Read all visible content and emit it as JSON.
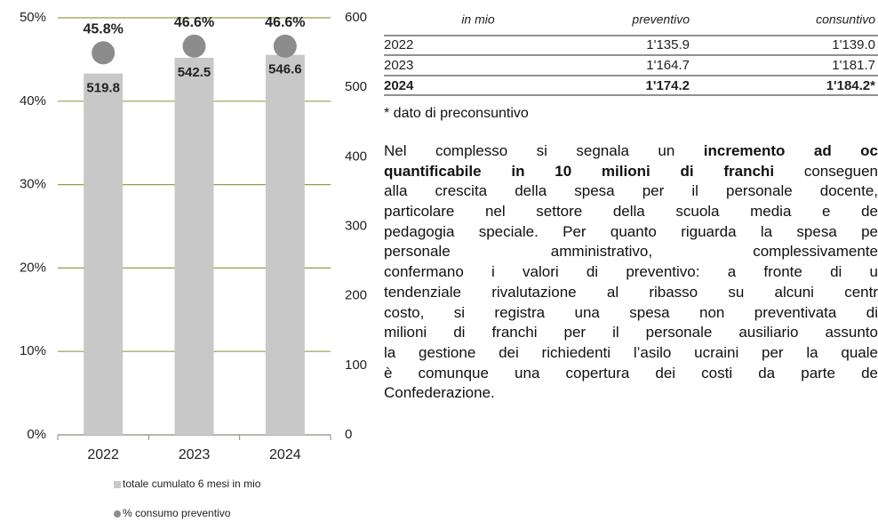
{
  "chart_data": {
    "type": "bar",
    "categories": [
      "2022",
      "2023",
      "2024"
    ],
    "series": [
      {
        "name": "totale cumulato 6 mesi in mio",
        "color": "#c8c8c8",
        "axis": "y2",
        "values": [
          519.8,
          542.5,
          546.6
        ]
      },
      {
        "name": "% consumo preventivo",
        "type": "scatter",
        "color": "#8c8c8c",
        "values": [
          45.8,
          46.6,
          46.6
        ],
        "value_labels": [
          "45.8%",
          "46.6%",
          "46.6%"
        ]
      }
    ],
    "ylim": [
      0,
      50
    ],
    "yticks": [
      {
        "value": 0,
        "label": "0%"
      },
      {
        "value": 10,
        "label": "10%"
      },
      {
        "value": 20,
        "label": "20%"
      },
      {
        "value": 30,
        "label": "30%"
      },
      {
        "value": 40,
        "label": "40%"
      },
      {
        "value": 50,
        "label": "50%"
      }
    ],
    "y2lim": [
      0,
      600
    ],
    "y2ticks": [
      0,
      100,
      200,
      300,
      400,
      500,
      600
    ],
    "grid": true,
    "grid_color": "#9b9b4f"
  },
  "table": {
    "header": [
      "in mio",
      "preventivo",
      "consuntivo"
    ],
    "rows": [
      [
        "2022",
        "1'135.9",
        "1'139.0"
      ],
      [
        "2023",
        "1'164.7",
        "1'181.7"
      ],
      [
        "2024",
        "1'174.2",
        "1'184.2*"
      ]
    ],
    "bold_row": 2
  },
  "note": "* dato di preconsuntivo",
  "paragraph": [
    [
      {
        "text": "Nel complesso si segnala un ",
        "bold": false
      },
      {
        "text": "incremento ad oc",
        "bold": true
      }
    ],
    [
      {
        "text": "quantificabile in 10 milioni di franchi",
        "bold": true
      },
      {
        "text": " conseguen",
        "bold": false
      }
    ],
    [
      {
        "text": "alla crescita della spesa per il personale docente,",
        "bold": false
      }
    ],
    [
      {
        "text": "particolare nel settore della scuola media e de",
        "bold": false
      }
    ],
    [
      {
        "text": "pedagogia speciale. Per quanto riguarda la spesa pe",
        "bold": false
      }
    ],
    [
      {
        "text": "personale amministrativo, complessivamente",
        "bold": false
      }
    ],
    [
      {
        "text": "confermano i valori di preventivo: a fronte di u",
        "bold": false
      }
    ],
    [
      {
        "text": "tendenziale rivalutazione al ribasso su alcuni centr",
        "bold": false
      }
    ],
    [
      {
        "text": "costo, si registra una spesa non preventivata di",
        "bold": false
      }
    ],
    [
      {
        "text": "milioni di franchi per il personale ausiliario assunto",
        "bold": false
      }
    ],
    [
      {
        "text": "la gestione dei richiedenti l’asilo ucraini per la quale",
        "bold": false
      }
    ],
    [
      {
        "text": "è comunque una copertura dei costi da parte de",
        "bold": false
      }
    ],
    [
      {
        "text": "Confederazione.",
        "bold": false
      }
    ]
  ]
}
